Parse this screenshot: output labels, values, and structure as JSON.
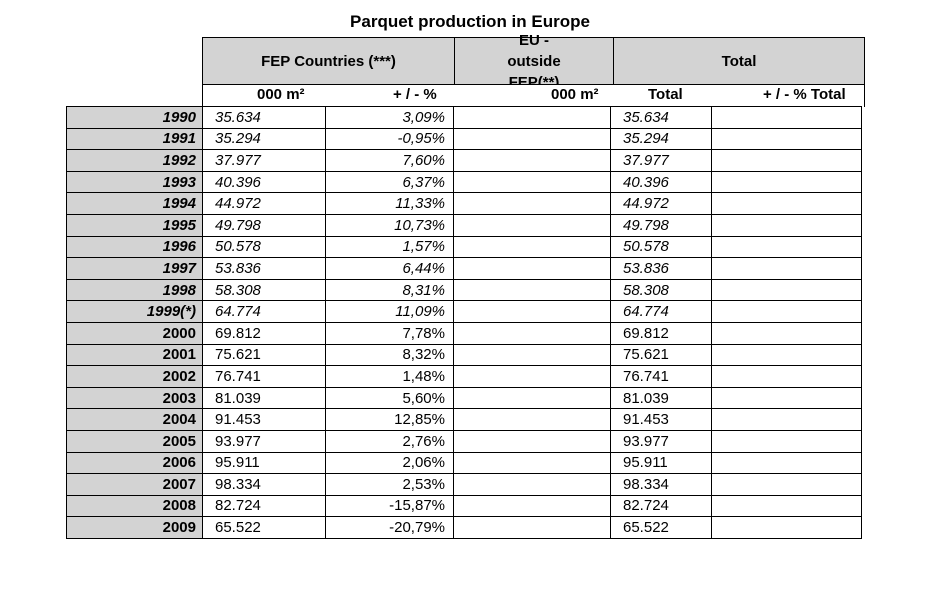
{
  "title": "Parquet production in Europe",
  "headers": {
    "fep_countries": "FEP Countries (***)",
    "eu_outside": "EU - outside FEP(**)",
    "total": "Total"
  },
  "subheaders": {
    "fep_unit": "000 m²",
    "fep_change": "+ / - %",
    "eu_unit": "000 m²",
    "total": "Total",
    "total_change": "+ / - % Total"
  },
  "rows": [
    {
      "year": "1990",
      "fep": "35.634",
      "pct": "3,09%",
      "eu": "",
      "total": "35.634",
      "total_pct": "",
      "italic": true
    },
    {
      "year": "1991",
      "fep": "35.294",
      "pct": "-0,95%",
      "eu": "",
      "total": "35.294",
      "total_pct": "",
      "italic": true
    },
    {
      "year": "1992",
      "fep": "37.977",
      "pct": "7,60%",
      "eu": "",
      "total": "37.977",
      "total_pct": "",
      "italic": true
    },
    {
      "year": "1993",
      "fep": "40.396",
      "pct": "6,37%",
      "eu": "",
      "total": "40.396",
      "total_pct": "",
      "italic": true
    },
    {
      "year": "1994",
      "fep": "44.972",
      "pct": "11,33%",
      "eu": "",
      "total": "44.972",
      "total_pct": "",
      "italic": true
    },
    {
      "year": "1995",
      "fep": "49.798",
      "pct": "10,73%",
      "eu": "",
      "total": "49.798",
      "total_pct": "",
      "italic": true
    },
    {
      "year": "1996",
      "fep": "50.578",
      "pct": "1,57%",
      "eu": "",
      "total": "50.578",
      "total_pct": "",
      "italic": true
    },
    {
      "year": "1997",
      "fep": "53.836",
      "pct": "6,44%",
      "eu": "",
      "total": "53.836",
      "total_pct": "",
      "italic": true
    },
    {
      "year": "1998",
      "fep": "58.308",
      "pct": "8,31%",
      "eu": "",
      "total": "58.308",
      "total_pct": "",
      "italic": true
    },
    {
      "year": "1999(*)",
      "fep": "64.774",
      "pct": "11,09%",
      "eu": "",
      "total": "64.774",
      "total_pct": "",
      "italic": true
    },
    {
      "year": "2000",
      "fep": "69.812",
      "pct": "7,78%",
      "eu": "",
      "total": "69.812",
      "total_pct": "",
      "italic": false
    },
    {
      "year": "2001",
      "fep": "75.621",
      "pct": "8,32%",
      "eu": "",
      "total": "75.621",
      "total_pct": "",
      "italic": false
    },
    {
      "year": "2002",
      "fep": "76.741",
      "pct": "1,48%",
      "eu": "",
      "total": "76.741",
      "total_pct": "",
      "italic": false
    },
    {
      "year": "2003",
      "fep": "81.039",
      "pct": "5,60%",
      "eu": "",
      "total": "81.039",
      "total_pct": "",
      "italic": false
    },
    {
      "year": "2004",
      "fep": "91.453",
      "pct": "12,85%",
      "eu": "",
      "total": "91.453",
      "total_pct": "",
      "italic": false
    },
    {
      "year": "2005",
      "fep": "93.977",
      "pct": "2,76%",
      "eu": "",
      "total": "93.977",
      "total_pct": "",
      "italic": false
    },
    {
      "year": "2006",
      "fep": "95.911",
      "pct": "2,06%",
      "eu": "",
      "total": "95.911",
      "total_pct": "",
      "italic": false
    },
    {
      "year": "2007",
      "fep": "98.334",
      "pct": "2,53%",
      "eu": "",
      "total": "98.334",
      "total_pct": "",
      "italic": false
    },
    {
      "year": "2008",
      "fep": "82.724",
      "pct": "-15,87%",
      "eu": "",
      "total": "82.724",
      "total_pct": "",
      "italic": false
    },
    {
      "year": "2009",
      "fep": "65.522",
      "pct": "-20,79%",
      "eu": "",
      "total": "65.522",
      "total_pct": "",
      "italic": false
    }
  ]
}
